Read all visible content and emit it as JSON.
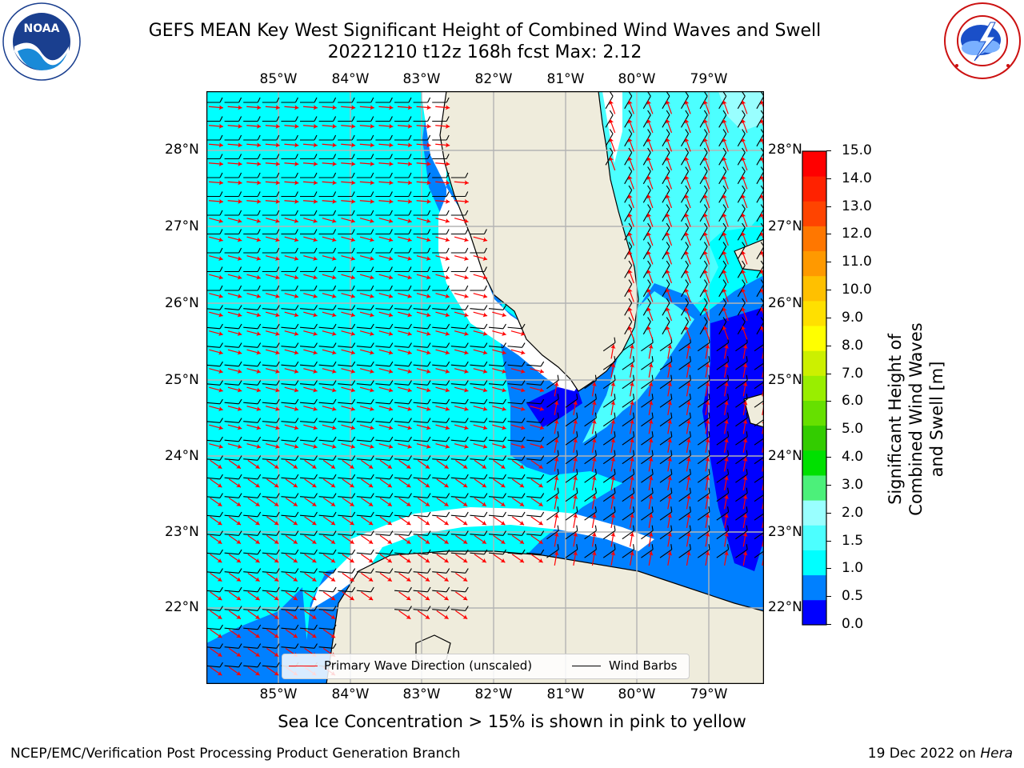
{
  "header": {
    "title_line1": "GEFS MEAN Key West Significant Height of Combined Wind Waves and Swell",
    "title_line2": "20221210 t12z 168h fcst   Max: 2.12"
  },
  "logos": {
    "left": {
      "text": "NOAA",
      "ring_text": "NATIONAL OCEANIC AND ATMOSPHERIC ADMINISTRATION · U.S. DEPARTMENT OF COMMERCE"
    },
    "right": {
      "ring_text": "NATIONAL WEATHER SERVICE"
    }
  },
  "map": {
    "lon_labels": [
      "85°W",
      "84°W",
      "83°W",
      "82°W",
      "81°W",
      "80°W",
      "79°W"
    ],
    "lat_labels": [
      "28°N",
      "27°N",
      "26°N",
      "25°N",
      "24°N",
      "23°N",
      "22°N"
    ],
    "land_color": "#efecdc",
    "ocean_colors": {
      "0.0-0.5": "#0000ff",
      "0.5-1.0": "#0080ff",
      "1.0-1.5": "#00ffff",
      "1.5-2.0": "#4cffff",
      "2.0-2.5": "#99ffff"
    },
    "barb_color": "#000000",
    "wave_arrow_color": "#ff0000"
  },
  "legend": {
    "wave": "Primary Wave Direction (unscaled)",
    "barbs": "Wind Barbs"
  },
  "colorbar": {
    "ticks": [
      "15.0",
      "14.0",
      "13.0",
      "12.0",
      "11.0",
      "10.0",
      "9.0",
      "8.0",
      "7.0",
      "6.0",
      "5.0",
      "4.0",
      "3.0",
      "2.0",
      "1.5",
      "1.0",
      "0.5",
      "0.0"
    ],
    "colors": [
      "#0000ff",
      "#0080ff",
      "#00ffff",
      "#4cffff",
      "#99ffff",
      "#4cf07a",
      "#00e000",
      "#33cc00",
      "#66e000",
      "#99ee00",
      "#ccf000",
      "#ffff00",
      "#ffe000",
      "#ffc000",
      "#ff9900",
      "#ff7700",
      "#ff4400",
      "#ff2200",
      "#ff0000"
    ],
    "label": "Significant Height of Combined Wind Waves and Swell [m]"
  },
  "footer": {
    "sea_ice_note": "Sea Ice Concentration > 15% is shown in pink to yellow",
    "left": "NCEP/EMC/Verification Post Processing Product Generation Branch",
    "right_prefix": "19 Dec 2022 on ",
    "right_host": "Hera"
  }
}
